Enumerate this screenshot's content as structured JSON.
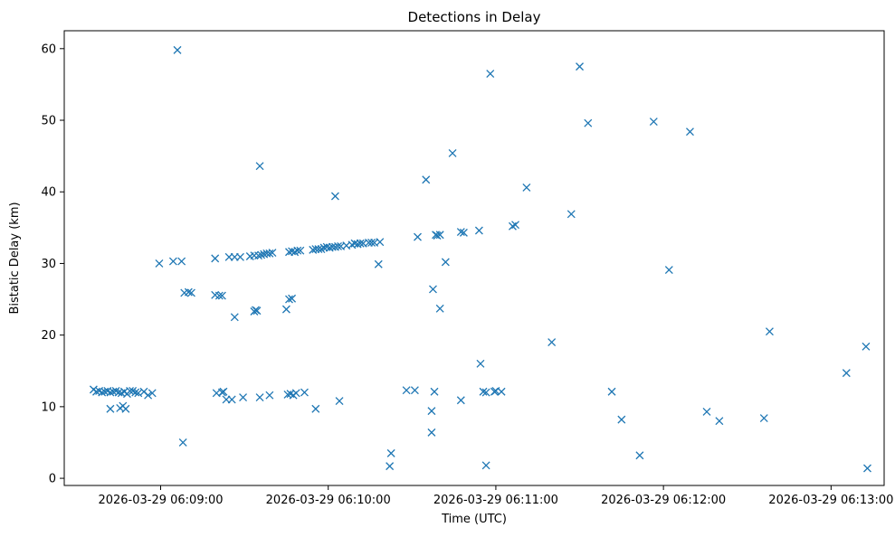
{
  "chart_data": {
    "type": "scatter",
    "title": "Detections in Delay",
    "xlabel": "Time (UTC)",
    "ylabel": "Bistatic Delay (km)",
    "marker": "x",
    "color": "#1f77b4",
    "grid": false,
    "x_unit": "seconds after 06:08:00 UTC on 2026-03-29",
    "xlim": [
      25.5,
      319
    ],
    "ylim": [
      -1.0,
      62.5
    ],
    "xticks": [
      60,
      120,
      180,
      240,
      300
    ],
    "xtick_labels": [
      "2026-03-29 06:09:00",
      "2026-03-29 06:10:00",
      "2026-03-29 06:11:00",
      "2026-03-29 06:12:00",
      "2026-03-29 06:13:00"
    ],
    "yticks": [
      0,
      10,
      20,
      30,
      40,
      50,
      60
    ],
    "ytick_labels": [
      "0",
      "10",
      "20",
      "30",
      "40",
      "50",
      "60"
    ],
    "points": [
      [
        36.0,
        12.4
      ],
      [
        37.0,
        12.1
      ],
      [
        38.0,
        12.2
      ],
      [
        39.0,
        12.0
      ],
      [
        40.0,
        12.1
      ],
      [
        41.0,
        12.2
      ],
      [
        42.0,
        12.0
      ],
      [
        43.0,
        12.1
      ],
      [
        44.0,
        12.2
      ],
      [
        45.0,
        12.0
      ],
      [
        46.0,
        11.9
      ],
      [
        47.0,
        12.1
      ],
      [
        48.0,
        11.8
      ],
      [
        49.0,
        12.2
      ],
      [
        50.0,
        12.2
      ],
      [
        51.0,
        12.0
      ],
      [
        52.0,
        11.9
      ],
      [
        54.0,
        12.1
      ],
      [
        55.5,
        11.6
      ],
      [
        57.0,
        11.9
      ],
      [
        42.0,
        9.7
      ],
      [
        45.5,
        9.8
      ],
      [
        46.5,
        10.1
      ],
      [
        47.5,
        9.7
      ],
      [
        59.5,
        30.0
      ],
      [
        64.5,
        30.3
      ],
      [
        67.5,
        30.3
      ],
      [
        68.5,
        25.9
      ],
      [
        70.0,
        26.0
      ],
      [
        71.0,
        25.9
      ],
      [
        66.0,
        59.8
      ],
      [
        68.0,
        5.0
      ],
      [
        79.5,
        25.6
      ],
      [
        81.0,
        25.5
      ],
      [
        82.0,
        25.5
      ],
      [
        79.5,
        30.7
      ],
      [
        83.5,
        11.0
      ],
      [
        80.0,
        11.9
      ],
      [
        82.0,
        12.0
      ],
      [
        82.5,
        12.1
      ],
      [
        85.5,
        11.0
      ],
      [
        89.5,
        11.3
      ],
      [
        86.5,
        22.5
      ],
      [
        84.5,
        30.9
      ],
      [
        86.5,
        30.9
      ],
      [
        88.5,
        30.9
      ],
      [
        92.0,
        31.0
      ],
      [
        93.5,
        23.3
      ],
      [
        94.0,
        23.5
      ],
      [
        94.5,
        23.4
      ],
      [
        95.5,
        43.6
      ],
      [
        93.5,
        31.1
      ],
      [
        95.0,
        31.1
      ],
      [
        96.0,
        31.2
      ],
      [
        97.0,
        31.3
      ],
      [
        98.0,
        31.4
      ],
      [
        99.0,
        31.4
      ],
      [
        100.0,
        31.5
      ],
      [
        95.5,
        11.3
      ],
      [
        99.0,
        11.6
      ],
      [
        105.0,
        23.6
      ],
      [
        106.0,
        25.0
      ],
      [
        107.0,
        25.1
      ],
      [
        106.0,
        31.6
      ],
      [
        107.0,
        31.7
      ],
      [
        108.0,
        31.6
      ],
      [
        109.0,
        31.8
      ],
      [
        110.0,
        31.8
      ],
      [
        105.5,
        11.7
      ],
      [
        106.5,
        11.8
      ],
      [
        107.5,
        11.6
      ],
      [
        108.5,
        11.9
      ],
      [
        111.5,
        12.0
      ],
      [
        115.5,
        9.7
      ],
      [
        114.5,
        31.9
      ],
      [
        115.5,
        32.0
      ],
      [
        116.5,
        32.0
      ],
      [
        117.5,
        32.0
      ],
      [
        118.5,
        32.2
      ],
      [
        119.5,
        32.3
      ],
      [
        120.5,
        32.2
      ],
      [
        121.5,
        32.3
      ],
      [
        122.5,
        32.3
      ],
      [
        123.5,
        32.4
      ],
      [
        124.5,
        32.4
      ],
      [
        126.5,
        32.5
      ],
      [
        128.5,
        32.6
      ],
      [
        129.5,
        32.8
      ],
      [
        130.5,
        32.7
      ],
      [
        131.5,
        32.8
      ],
      [
        132.5,
        32.8
      ],
      [
        134.5,
        32.9
      ],
      [
        135.5,
        32.9
      ],
      [
        136.5,
        32.9
      ],
      [
        138.5,
        33.0
      ],
      [
        122.5,
        39.4
      ],
      [
        124.0,
        10.8
      ],
      [
        138.0,
        29.9
      ],
      [
        142.0,
        1.7
      ],
      [
        142.5,
        3.5
      ],
      [
        148.0,
        12.3
      ],
      [
        151.0,
        12.3
      ],
      [
        152.0,
        33.7
      ],
      [
        155.0,
        41.7
      ],
      [
        157.0,
        9.4
      ],
      [
        157.0,
        6.4
      ],
      [
        158.0,
        12.1
      ],
      [
        157.5,
        26.4
      ],
      [
        158.5,
        34.0
      ],
      [
        159.0,
        33.9
      ],
      [
        160.0,
        34.0
      ],
      [
        160.0,
        23.7
      ],
      [
        162.0,
        30.2
      ],
      [
        164.5,
        45.4
      ],
      [
        167.5,
        10.9
      ],
      [
        167.5,
        34.4
      ],
      [
        168.5,
        34.3
      ],
      [
        174.0,
        34.6
      ],
      [
        174.5,
        16.0
      ],
      [
        175.5,
        12.1
      ],
      [
        176.5,
        12.0
      ],
      [
        176.5,
        1.8
      ],
      [
        178.0,
        56.5
      ],
      [
        179.5,
        12.1
      ],
      [
        180.0,
        12.2
      ],
      [
        182.0,
        12.1
      ],
      [
        186.0,
        35.2
      ],
      [
        187.0,
        35.4
      ],
      [
        191.0,
        40.6
      ],
      [
        200.0,
        19.0
      ],
      [
        207.0,
        36.9
      ],
      [
        210.0,
        57.5
      ],
      [
        213.0,
        49.6
      ],
      [
        221.5,
        12.1
      ],
      [
        225.0,
        8.2
      ],
      [
        231.5,
        3.2
      ],
      [
        236.5,
        49.8
      ],
      [
        242.0,
        29.1
      ],
      [
        249.5,
        48.4
      ],
      [
        255.5,
        9.3
      ],
      [
        260.0,
        8.0
      ],
      [
        276.0,
        8.4
      ],
      [
        278.0,
        20.5
      ],
      [
        305.5,
        14.7
      ],
      [
        312.5,
        18.4
      ],
      [
        313.0,
        1.4
      ]
    ]
  }
}
